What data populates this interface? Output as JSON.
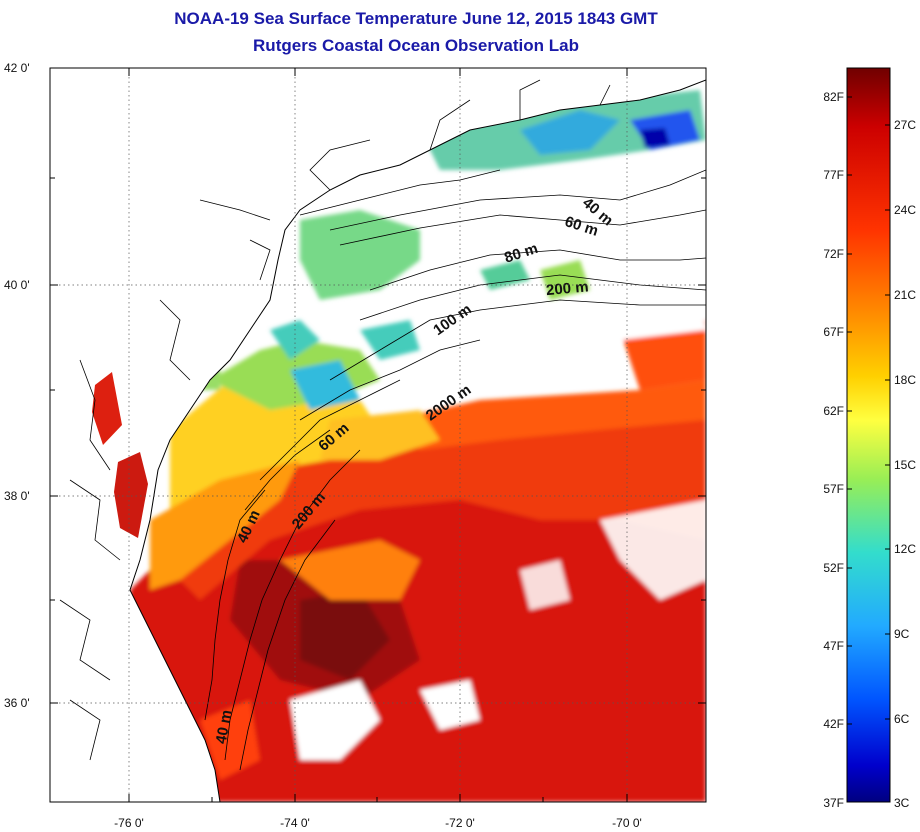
{
  "header": {
    "title": "NOAA-19 Sea Surface Temperature June 12, 2015 1843 GMT",
    "subtitle": "Rutgers Coastal Ocean Observation Lab"
  },
  "axes": {
    "lat_ticks": [
      "42 0'",
      "40 0'",
      "38 0'",
      "36 0'"
    ],
    "lon_ticks": [
      "-76 0'",
      "-74 0'",
      "-72 0'",
      "-70 0'"
    ]
  },
  "isobath_labels": [
    "40 m",
    "60 m",
    "80 m",
    "200 m",
    "100 m",
    "2000 m",
    "60 m",
    "200 m",
    "40 m",
    "40 m"
  ],
  "colorbar": {
    "fahrenheit": [
      "82F",
      "77F",
      "72F",
      "67F",
      "62F",
      "57F",
      "52F",
      "47F",
      "42F",
      "37F"
    ],
    "celsius": [
      "27C",
      "24C",
      "21C",
      "18C",
      "15C",
      "12C",
      "9C",
      "6C",
      "3C"
    ],
    "colors": [
      "#800000",
      "#cc0000",
      "#ff3300",
      "#ff8000",
      "#ffcc00",
      "#ffff33",
      "#99ee44",
      "#33ddcc",
      "#33aaff",
      "#0055ff",
      "#0000cc",
      "#000080"
    ]
  },
  "colors": {
    "title": "#1a1aa8",
    "warm": "#e02010",
    "hot": "#b01010",
    "cool": "#77dd88",
    "land": "#ffffff"
  }
}
